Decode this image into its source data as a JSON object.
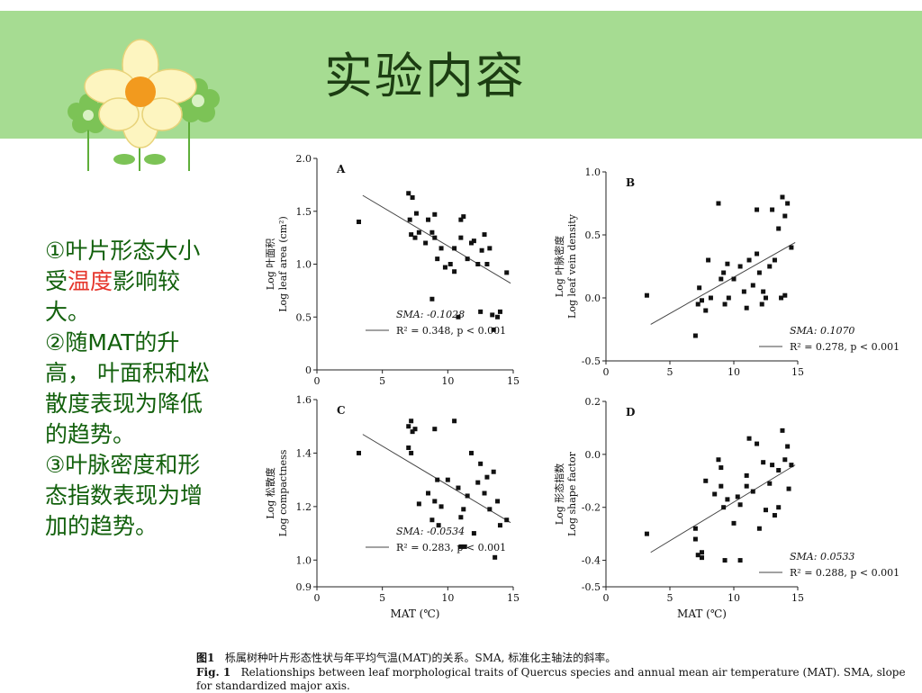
{
  "slide": {
    "title": "实验内容",
    "bullets": [
      {
        "parts": [
          "①叶片形态大小受",
          "温度",
          "影响较大。"
        ]
      },
      {
        "parts": [
          "②随MAT的升高， 叶面积和松散度表现为降低的趋势。"
        ]
      },
      {
        "parts": [
          "③叶脉密度和形态指数表现为增加的趋势。"
        ]
      }
    ],
    "colors": {
      "header": "#a6dc92",
      "title": "#1c3d12",
      "text": "#12600c",
      "highlight": "#e5342a"
    }
  },
  "caption": {
    "cn_label": "图1",
    "cn_text": "栎属树种叶片形态性状与年平均气温(MAT)的关系。SMA, 标准化主轴法的斜率。",
    "en_label": "Fig. 1",
    "en_text": "Relationships between leaf morphological traits of Quercus species and annual mean air temperature (MAT). SMA, slope for standardized major axis."
  },
  "chart_data": [
    {
      "type": "scatter",
      "panel": "A",
      "xlim": [
        0,
        15
      ],
      "ylim": [
        0,
        2.0
      ],
      "xticks": [
        "0",
        "5",
        "10",
        "15"
      ],
      "yticks": [
        "0",
        "0.5",
        "1.0",
        "1.5",
        "2.0"
      ],
      "ylabel_cn": "Log 叶面积",
      "ylabel_en": "Log leaf area (cm²)",
      "xlabel": "",
      "sma": "SMA: -0.1028",
      "stats": "R² = 0.348, p < 0.001",
      "fit": [
        [
          3.5,
          1.65
        ],
        [
          14.8,
          0.82
        ]
      ],
      "points": [
        [
          3.2,
          1.4
        ],
        [
          7.0,
          1.67
        ],
        [
          7.3,
          1.63
        ],
        [
          7.1,
          1.42
        ],
        [
          7.2,
          1.28
        ],
        [
          7.5,
          1.25
        ],
        [
          7.6,
          1.48
        ],
        [
          7.8,
          1.3
        ],
        [
          8.3,
          1.2
        ],
        [
          8.5,
          1.42
        ],
        [
          8.8,
          1.3
        ],
        [
          9.0,
          1.47
        ],
        [
          9.0,
          1.25
        ],
        [
          9.2,
          1.05
        ],
        [
          9.5,
          1.15
        ],
        [
          9.8,
          0.97
        ],
        [
          8.8,
          0.67
        ],
        [
          10.2,
          1.0
        ],
        [
          10.5,
          0.93
        ],
        [
          10.5,
          1.15
        ],
        [
          10.8,
          0.5
        ],
        [
          11.0,
          1.42
        ],
        [
          11.2,
          1.45
        ],
        [
          11.0,
          1.25
        ],
        [
          11.5,
          1.05
        ],
        [
          11.8,
          1.2
        ],
        [
          12.0,
          1.22
        ],
        [
          12.3,
          1.0
        ],
        [
          12.5,
          0.55
        ],
        [
          12.8,
          1.28
        ],
        [
          13.0,
          1.0
        ],
        [
          13.2,
          1.15
        ],
        [
          13.5,
          0.38
        ],
        [
          13.8,
          0.5
        ],
        [
          14.0,
          0.55
        ],
        [
          14.5,
          0.92
        ],
        [
          12.6,
          1.13
        ],
        [
          13.4,
          0.52
        ]
      ]
    },
    {
      "type": "scatter",
      "panel": "B",
      "xlim": [
        0,
        15
      ],
      "ylim": [
        -0.5,
        1.0
      ],
      "xticks": [
        "0",
        "5",
        "10",
        "15"
      ],
      "yticks": [
        "-0.5",
        "0.0",
        "0.5",
        "1.0"
      ],
      "ylabel_cn": "Log 叶脉密度",
      "ylabel_en": "Log leaf vein density",
      "xlabel": "",
      "sma": "SMA: 0.1070",
      "stats": "R² = 0.278, p < 0.001",
      "fit": [
        [
          3.5,
          -0.21
        ],
        [
          14.8,
          0.44
        ]
      ],
      "points": [
        [
          3.2,
          0.02
        ],
        [
          7.0,
          -0.3
        ],
        [
          7.2,
          -0.05
        ],
        [
          7.5,
          -0.02
        ],
        [
          7.3,
          0.08
        ],
        [
          7.8,
          -0.1
        ],
        [
          8.0,
          0.3
        ],
        [
          8.2,
          0.0
        ],
        [
          8.8,
          0.75
        ],
        [
          9.0,
          0.15
        ],
        [
          9.2,
          0.2
        ],
        [
          9.5,
          0.27
        ],
        [
          9.3,
          -0.05
        ],
        [
          10.0,
          0.15
        ],
        [
          10.5,
          0.25
        ],
        [
          10.8,
          0.05
        ],
        [
          11.0,
          -0.08
        ],
        [
          11.2,
          0.3
        ],
        [
          11.5,
          0.1
        ],
        [
          11.8,
          0.35
        ],
        [
          11.8,
          0.7
        ],
        [
          12.0,
          0.2
        ],
        [
          12.3,
          0.05
        ],
        [
          12.5,
          0.0
        ],
        [
          12.8,
          0.25
        ],
        [
          13.0,
          0.7
        ],
        [
          13.2,
          0.3
        ],
        [
          13.5,
          0.55
        ],
        [
          13.8,
          0.8
        ],
        [
          14.0,
          0.65
        ],
        [
          14.2,
          0.75
        ],
        [
          14.5,
          0.4
        ],
        [
          14.0,
          0.02
        ],
        [
          13.7,
          0.0
        ],
        [
          12.2,
          -0.05
        ],
        [
          9.6,
          0.0
        ]
      ]
    },
    {
      "type": "scatter",
      "panel": "C",
      "xlim": [
        0,
        15
      ],
      "ylim": [
        0.9,
        1.6
      ],
      "xticks": [
        "0",
        "5",
        "10",
        "15"
      ],
      "yticks": [
        "0.9",
        "1.0",
        "1.2",
        "1.4",
        "1.6"
      ],
      "ylabel_cn": "Log 松散度",
      "ylabel_en": "Log compactness",
      "xlabel": "MAT (℃)",
      "sma": "SMA: -0.0534",
      "stats": "R² = 0.283, p < 0.001",
      "fit": [
        [
          3.5,
          1.47
        ],
        [
          14.8,
          1.14
        ]
      ],
      "points": [
        [
          3.2,
          1.4
        ],
        [
          7.0,
          1.5
        ],
        [
          7.2,
          1.52
        ],
        [
          7.3,
          1.48
        ],
        [
          7.5,
          1.49
        ],
        [
          7.0,
          1.42
        ],
        [
          7.2,
          1.4
        ],
        [
          7.8,
          1.21
        ],
        [
          8.5,
          1.25
        ],
        [
          8.8,
          1.15
        ],
        [
          9.0,
          1.49
        ],
        [
          9.2,
          1.3
        ],
        [
          9.0,
          1.22
        ],
        [
          9.3,
          1.13
        ],
        [
          9.5,
          1.2
        ],
        [
          10.0,
          1.3
        ],
        [
          10.5,
          1.52
        ],
        [
          10.8,
          1.27
        ],
        [
          11.0,
          1.05
        ],
        [
          11.2,
          1.19
        ],
        [
          11.0,
          1.16
        ],
        [
          11.5,
          1.24
        ],
        [
          11.8,
          1.4
        ],
        [
          12.0,
          1.1
        ],
        [
          12.3,
          1.29
        ],
        [
          12.5,
          1.36
        ],
        [
          12.8,
          1.25
        ],
        [
          13.0,
          1.31
        ],
        [
          13.2,
          1.19
        ],
        [
          13.5,
          1.33
        ],
        [
          13.8,
          1.22
        ],
        [
          14.0,
          1.13
        ],
        [
          14.5,
          1.15
        ],
        [
          13.6,
          1.01
        ],
        [
          11.3,
          1.05
        ]
      ]
    },
    {
      "type": "scatter",
      "panel": "D",
      "xlim": [
        0,
        15
      ],
      "ylim": [
        -0.5,
        0.2
      ],
      "xticks": [
        "0",
        "5",
        "10",
        "15"
      ],
      "yticks": [
        "-0.5",
        "-0.4",
        "-0.2",
        "0.0",
        "0.2"
      ],
      "ylabel_cn": "Log 形态指数",
      "ylabel_en": "Log shape factor",
      "xlabel": "MAT (℃)",
      "sma": "SMA: 0.0533",
      "stats": "R² = 0.288, p < 0.001",
      "fit": [
        [
          3.5,
          -0.37
        ],
        [
          14.8,
          -0.04
        ]
      ],
      "points": [
        [
          3.2,
          -0.3
        ],
        [
          7.0,
          -0.32
        ],
        [
          7.0,
          -0.28
        ],
        [
          7.2,
          -0.38
        ],
        [
          7.5,
          -0.39
        ],
        [
          7.5,
          -0.37
        ],
        [
          7.8,
          -0.1
        ],
        [
          8.5,
          -0.15
        ],
        [
          8.8,
          -0.02
        ],
        [
          9.0,
          -0.05
        ],
        [
          9.0,
          -0.12
        ],
        [
          9.2,
          -0.2
        ],
        [
          9.3,
          -0.4
        ],
        [
          9.5,
          -0.17
        ],
        [
          10.0,
          -0.26
        ],
        [
          10.3,
          -0.16
        ],
        [
          10.5,
          -0.19
        ],
        [
          11.0,
          -0.08
        ],
        [
          11.2,
          0.06
        ],
        [
          11.0,
          -0.12
        ],
        [
          11.5,
          -0.14
        ],
        [
          11.8,
          0.04
        ],
        [
          12.0,
          -0.28
        ],
        [
          12.3,
          -0.03
        ],
        [
          12.5,
          -0.21
        ],
        [
          12.8,
          -0.11
        ],
        [
          13.0,
          -0.04
        ],
        [
          13.2,
          -0.23
        ],
        [
          13.5,
          -0.2
        ],
        [
          13.8,
          0.09
        ],
        [
          14.0,
          -0.02
        ],
        [
          14.2,
          0.03
        ],
        [
          14.5,
          -0.04
        ],
        [
          14.3,
          -0.13
        ],
        [
          13.5,
          -0.06
        ],
        [
          10.5,
          -0.4
        ]
      ]
    }
  ]
}
